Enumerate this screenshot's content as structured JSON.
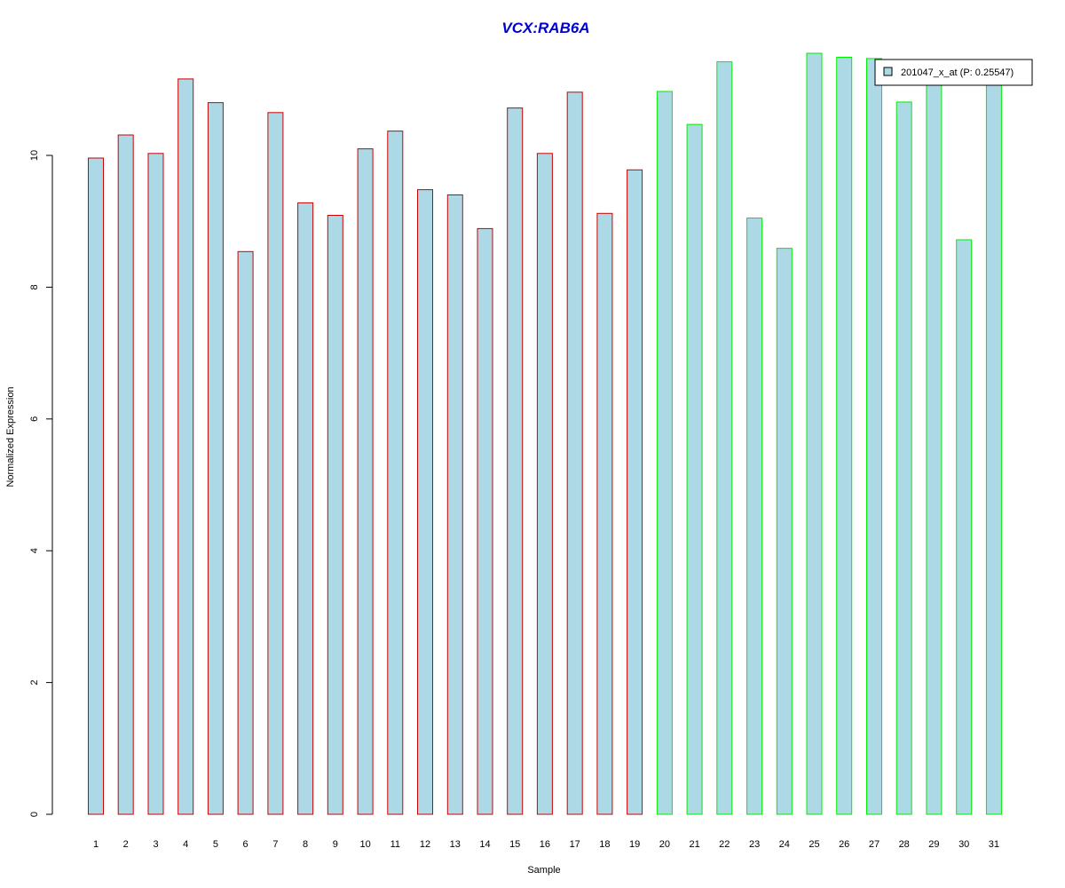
{
  "chart_data": {
    "type": "bar",
    "title": "VCX:RAB6A",
    "xlabel": "Sample",
    "ylabel": "Normalized Expression",
    "categories": [
      "1",
      "2",
      "3",
      "4",
      "5",
      "6",
      "7",
      "8",
      "9",
      "10",
      "11",
      "12",
      "13",
      "14",
      "15",
      "16",
      "17",
      "18",
      "19",
      "20",
      "21",
      "22",
      "23",
      "24",
      "25",
      "26",
      "27",
      "28",
      "29",
      "30",
      "31"
    ],
    "values": [
      9.96,
      10.31,
      10.03,
      11.16,
      10.8,
      8.54,
      10.65,
      9.28,
      9.09,
      10.1,
      10.37,
      9.48,
      9.4,
      8.89,
      10.72,
      10.03,
      10.96,
      9.12,
      9.78,
      10.97,
      10.47,
      11.42,
      9.05,
      8.59,
      11.55,
      11.49,
      11.47,
      10.81,
      11.1,
      8.72,
      11.1
    ],
    "group_sizes": [
      19,
      12
    ],
    "y_ticks": [
      0,
      2,
      4,
      6,
      8,
      10
    ],
    "ylim": [
      0,
      11.55
    ],
    "legend": {
      "label": "201047_x_at (P: 0.25547)",
      "position": "top-right"
    },
    "grid": false
  },
  "colors": {
    "bar_fill": "#add8e6",
    "group_1_border": "#cc0000",
    "group_2_border": "#00ee00",
    "title": "#0000cc",
    "axis": "#000000"
  }
}
